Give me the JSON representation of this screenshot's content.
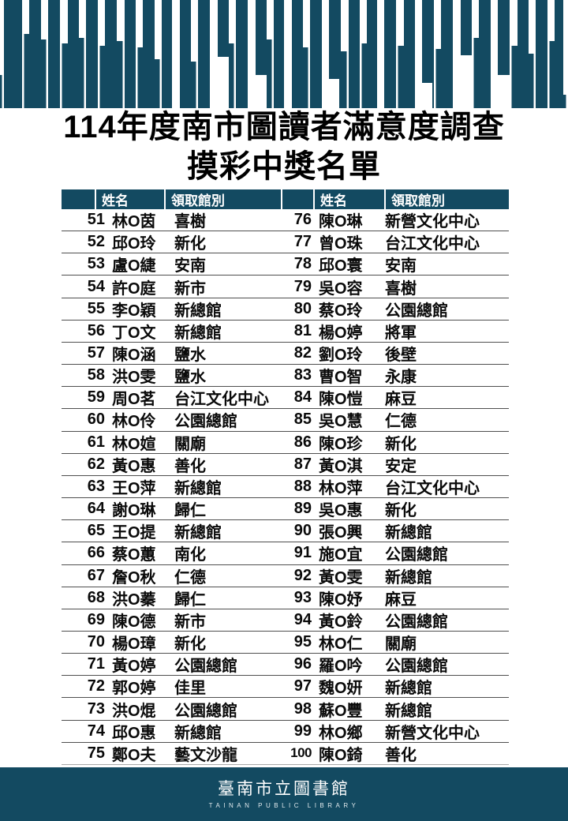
{
  "title": {
    "line1": "114年度南市圖讀者滿意度調查",
    "line2": "摸彩中獎名單"
  },
  "table": {
    "headers": {
      "no": "",
      "name": "姓名",
      "branch": "領取館別"
    },
    "left_rows": [
      {
        "no": "51",
        "name": "林O茵",
        "branch": "喜樹"
      },
      {
        "no": "52",
        "name": "邱O玲",
        "branch": "新化"
      },
      {
        "no": "53",
        "name": "盧O緁",
        "branch": "安南"
      },
      {
        "no": "54",
        "name": "許O庭",
        "branch": "新市"
      },
      {
        "no": "55",
        "name": "李O穎",
        "branch": "新總館"
      },
      {
        "no": "56",
        "name": "丁O文",
        "branch": "新總館"
      },
      {
        "no": "57",
        "name": "陳O涵",
        "branch": "鹽水"
      },
      {
        "no": "58",
        "name": "洪O雯",
        "branch": "鹽水"
      },
      {
        "no": "59",
        "name": "周O茗",
        "branch": "台江文化中心"
      },
      {
        "no": "60",
        "name": "林O伶",
        "branch": "公園總館"
      },
      {
        "no": "61",
        "name": "林O媗",
        "branch": "關廟"
      },
      {
        "no": "62",
        "name": "黃O惠",
        "branch": "善化"
      },
      {
        "no": "63",
        "name": "王O萍",
        "branch": "新總館"
      },
      {
        "no": "64",
        "name": "謝O琳",
        "branch": "歸仁"
      },
      {
        "no": "65",
        "name": "王O提",
        "branch": "新總館"
      },
      {
        "no": "66",
        "name": "蔡O蕙",
        "branch": "南化"
      },
      {
        "no": "67",
        "name": "詹O秋",
        "branch": "仁德"
      },
      {
        "no": "68",
        "name": "洪O蓁",
        "branch": "歸仁"
      },
      {
        "no": "69",
        "name": "陳O德",
        "branch": "新市"
      },
      {
        "no": "70",
        "name": "楊O璋",
        "branch": "新化"
      },
      {
        "no": "71",
        "name": "黃O婷",
        "branch": "公園總館"
      },
      {
        "no": "72",
        "name": "郭O婷",
        "branch": "佳里"
      },
      {
        "no": "73",
        "name": "洪O焜",
        "branch": "公園總館"
      },
      {
        "no": "74",
        "name": "邱O惠",
        "branch": "新總館"
      },
      {
        "no": "75",
        "name": "鄭O夫",
        "branch": "藝文沙龍"
      }
    ],
    "right_rows": [
      {
        "no": "76",
        "name": "陳O琳",
        "branch": "新營文化中心"
      },
      {
        "no": "77",
        "name": "曾O珠",
        "branch": "台江文化中心"
      },
      {
        "no": "78",
        "name": "邱O寰",
        "branch": "安南"
      },
      {
        "no": "79",
        "name": "吳O容",
        "branch": "喜樹"
      },
      {
        "no": "80",
        "name": "蔡O玲",
        "branch": "公園總館"
      },
      {
        "no": "81",
        "name": "楊O婷",
        "branch": "將軍"
      },
      {
        "no": "82",
        "name": "劉O玲",
        "branch": "後壁"
      },
      {
        "no": "83",
        "name": "曹O智",
        "branch": "永康"
      },
      {
        "no": "84",
        "name": "陳O愷",
        "branch": "麻豆"
      },
      {
        "no": "85",
        "name": "吳O慧",
        "branch": "仁德"
      },
      {
        "no": "86",
        "name": "陳O珍",
        "branch": "新化"
      },
      {
        "no": "87",
        "name": "黃O淇",
        "branch": "安定"
      },
      {
        "no": "88",
        "name": "林O萍",
        "branch": "台江文化中心"
      },
      {
        "no": "89",
        "name": "吳O惠",
        "branch": "新化"
      },
      {
        "no": "90",
        "name": "張O興",
        "branch": "新總館"
      },
      {
        "no": "91",
        "name": "施O宜",
        "branch": "公園總館"
      },
      {
        "no": "92",
        "name": "黃O雯",
        "branch": "新總館"
      },
      {
        "no": "93",
        "name": "陳O妤",
        "branch": "麻豆"
      },
      {
        "no": "94",
        "name": "黃O鈴",
        "branch": "公園總館"
      },
      {
        "no": "95",
        "name": "林O仁",
        "branch": "關廟"
      },
      {
        "no": "96",
        "name": "羅O吟",
        "branch": "公園總館"
      },
      {
        "no": "97",
        "name": "魏O妍",
        "branch": "新總館"
      },
      {
        "no": "98",
        "name": "蘇O豐",
        "branch": "新總館"
      },
      {
        "no": "99",
        "name": "林O鄉",
        "branch": "新營文化中心"
      },
      {
        "no": "100",
        "name": "陳O錡",
        "branch": "善化"
      }
    ]
  },
  "footer": {
    "logo_zh": "臺南市立圖書館",
    "logo_en": "TAINAN PUBLIC LIBRARY"
  },
  "colors": {
    "teal": "#134a61",
    "row_line": "#4f4f4f"
  },
  "icons": {
    "decoration": "piano-keys-decoration"
  }
}
